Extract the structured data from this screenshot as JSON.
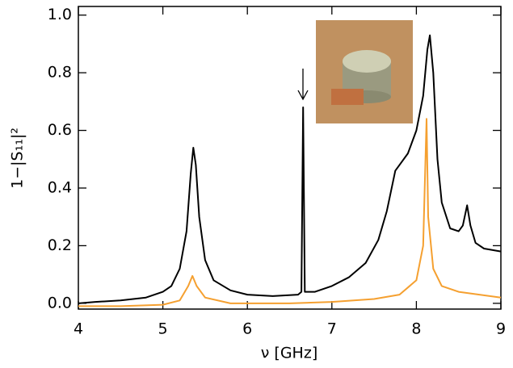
{
  "chart_data": {
    "type": "line",
    "x_label": "ν [GHz]",
    "y_label": "1−|S₁₁|²",
    "xlim": [
      4,
      9
    ],
    "ylim": [
      -0.02,
      1.03
    ],
    "xticks": [
      4,
      5,
      6,
      7,
      8,
      9
    ],
    "yticks": [
      {
        "value": 0,
        "label": "0.0"
      },
      {
        "value": 0.2,
        "label": "0.2"
      },
      {
        "value": 0.4,
        "label": "0.4"
      },
      {
        "value": 0.6,
        "label": "0.6"
      },
      {
        "value": 0.8,
        "label": "0.8"
      },
      {
        "value": 1.0,
        "label": "1.0"
      }
    ],
    "series": [
      {
        "color": "#000000",
        "x": [
          4.0,
          4.2,
          4.5,
          4.8,
          5.0,
          5.1,
          5.2,
          5.28,
          5.33,
          5.36,
          5.39,
          5.43,
          5.5,
          5.6,
          5.8,
          6.0,
          6.3,
          6.6,
          6.64,
          6.66,
          6.68,
          6.8,
          7.0,
          7.2,
          7.4,
          7.55,
          7.65,
          7.75,
          7.8,
          7.9,
          8.0,
          8.08,
          8.13,
          8.16,
          8.2,
          8.25,
          8.3,
          8.4,
          8.5,
          8.55,
          8.6,
          8.64,
          8.7,
          8.8,
          9.0
        ],
        "values": [
          0.0,
          0.005,
          0.01,
          0.02,
          0.04,
          0.06,
          0.12,
          0.25,
          0.45,
          0.54,
          0.48,
          0.3,
          0.15,
          0.08,
          0.045,
          0.03,
          0.025,
          0.03,
          0.04,
          0.68,
          0.04,
          0.04,
          0.06,
          0.09,
          0.14,
          0.22,
          0.32,
          0.46,
          0.48,
          0.52,
          0.6,
          0.72,
          0.88,
          0.93,
          0.8,
          0.5,
          0.35,
          0.26,
          0.25,
          0.27,
          0.34,
          0.27,
          0.21,
          0.19,
          0.18
        ]
      },
      {
        "color": "#f5a030",
        "x": [
          4.0,
          4.5,
          5.0,
          5.2,
          5.3,
          5.35,
          5.4,
          5.5,
          5.8,
          6.5,
          7.0,
          7.5,
          7.8,
          8.0,
          8.08,
          8.12,
          8.14,
          8.2,
          8.3,
          8.5,
          9.0
        ],
        "values": [
          -0.01,
          -0.01,
          -0.005,
          0.01,
          0.06,
          0.095,
          0.06,
          0.02,
          0.0,
          0.0,
          0.005,
          0.015,
          0.03,
          0.08,
          0.2,
          0.64,
          0.3,
          0.12,
          0.06,
          0.04,
          0.02
        ]
      }
    ]
  }
}
